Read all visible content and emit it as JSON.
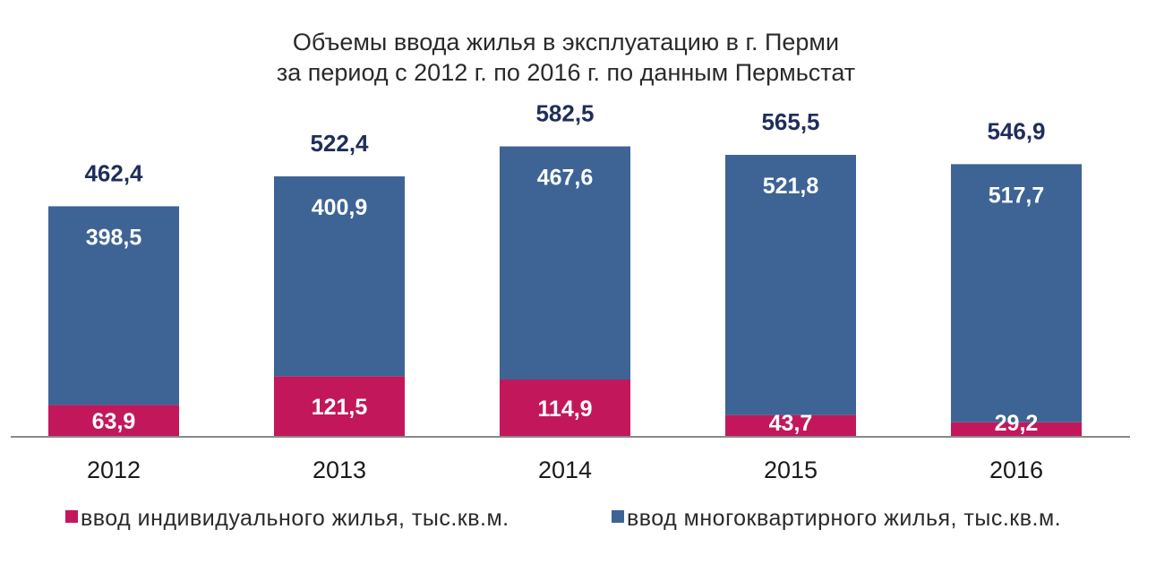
{
  "chart_data": {
    "type": "bar",
    "stacked": true,
    "title": [
      "Объемы ввода жилья в эксплуатацию  в г. Перми",
      "за период  с 2012 г. по 2016 г. по данным Пермьстат"
    ],
    "categories": [
      "2012",
      "2013",
      "2014",
      "2015",
      "2016"
    ],
    "series": [
      {
        "name": "ввод индивидуального  жилья, тыс.кв.м.",
        "color": "#c2185b",
        "values": [
          63.9,
          121.5,
          114.9,
          43.7,
          29.2
        ],
        "labels": [
          "63,9",
          "121,5",
          "114,9",
          "43,7",
          "29,2"
        ]
      },
      {
        "name": "ввод многоквартирного  жилья, тыс.кв.м.",
        "color": "#3d6495",
        "values": [
          398.5,
          400.9,
          467.6,
          521.8,
          517.7
        ],
        "labels": [
          "398,5",
          "400,9",
          "467,6",
          "521,8",
          "517,7"
        ]
      }
    ],
    "totals": [
      462.4,
      522.4,
      582.5,
      565.5,
      546.9
    ],
    "total_labels": [
      "462,4",
      "522,4",
      "582,5",
      "565,5",
      "546,9"
    ],
    "ylim": [
      0,
      600
    ],
    "grid": false,
    "legend_position": "bottom",
    "xlabel": "",
    "ylabel": ""
  }
}
